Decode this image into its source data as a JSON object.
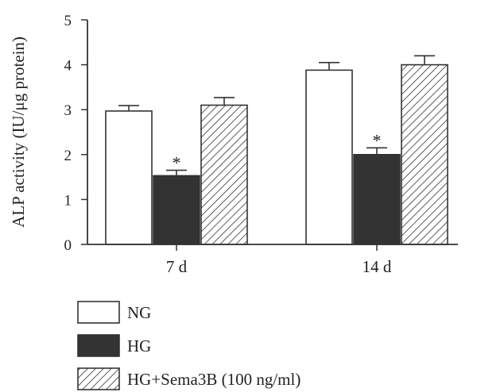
{
  "chart_data": {
    "type": "bar",
    "title": "",
    "xlabel": "",
    "ylabel": "ALP activity (IU/μg protein)",
    "ylim": [
      0,
      5
    ],
    "yticks": [
      "0",
      "1",
      "2",
      "3",
      "4",
      "5"
    ],
    "categories": [
      "7 d",
      "14 d"
    ],
    "series": [
      {
        "name": "NG",
        "values": [
          2.97,
          3.88
        ],
        "errors": [
          0.12,
          0.17
        ],
        "fill": "white",
        "color": "#ffffff"
      },
      {
        "name": "HG",
        "values": [
          1.53,
          2.0
        ],
        "errors": [
          0.12,
          0.15
        ],
        "fill": "solid",
        "color": "#333333"
      },
      {
        "name": "HG+Sema3B (100 ng/ml)",
        "values": [
          3.1,
          4.0
        ],
        "errors": [
          0.17,
          0.2
        ],
        "fill": "hatched",
        "color": "#ffffff"
      }
    ],
    "annotations": [
      {
        "series": 1,
        "category": 0,
        "text": "*"
      },
      {
        "series": 1,
        "category": 1,
        "text": "*"
      }
    ],
    "grid": false,
    "legend_position": "bottom-left"
  }
}
